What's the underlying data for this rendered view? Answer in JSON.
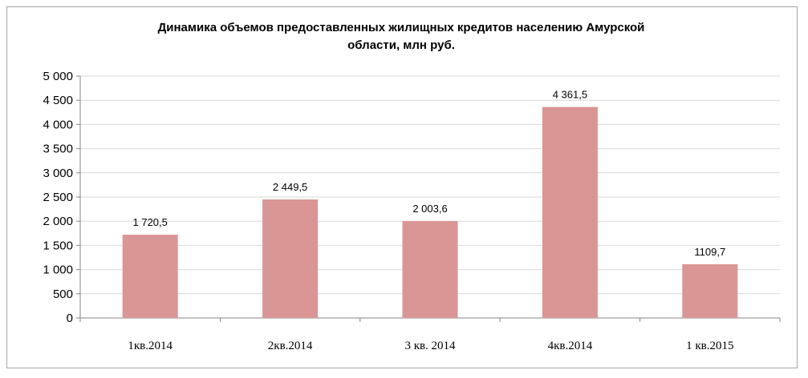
{
  "chart_data": {
    "type": "bar",
    "title": "Динамика объемов  предоставленных жилищных кредитов населению Амурской области,  млн руб.",
    "title_lines": [
      "Динамика объемов  предоставленных жилищных кредитов населению Амурской",
      "области,  млн руб."
    ],
    "categories": [
      "1кв.2014",
      "2кв.2014",
      "3 кв. 2014",
      "4кв.2014",
      "1 кв.2015"
    ],
    "values": [
      1720.5,
      2449.5,
      2003.6,
      4361.5,
      1109.7
    ],
    "data_labels": [
      "1 720,5",
      "2 449,5",
      "2 003,6",
      "4 361,5",
      "1109,7"
    ],
    "ylim": [
      0,
      5000
    ],
    "yticks": [
      0,
      500,
      1000,
      1500,
      2000,
      2500,
      3000,
      3500,
      4000,
      4500,
      5000
    ],
    "ytick_labels": [
      "0",
      "500",
      "1 000",
      "1 500",
      "2 000",
      "2 500",
      "3 000",
      "3 500",
      "4 000",
      "4 500",
      "5 000"
    ],
    "xlabel": "",
    "ylabel": "",
    "grid": true,
    "legend": "none",
    "bar_color": "#d99694",
    "grid_color": "#d9d9d9",
    "axis_color": "#868686"
  }
}
